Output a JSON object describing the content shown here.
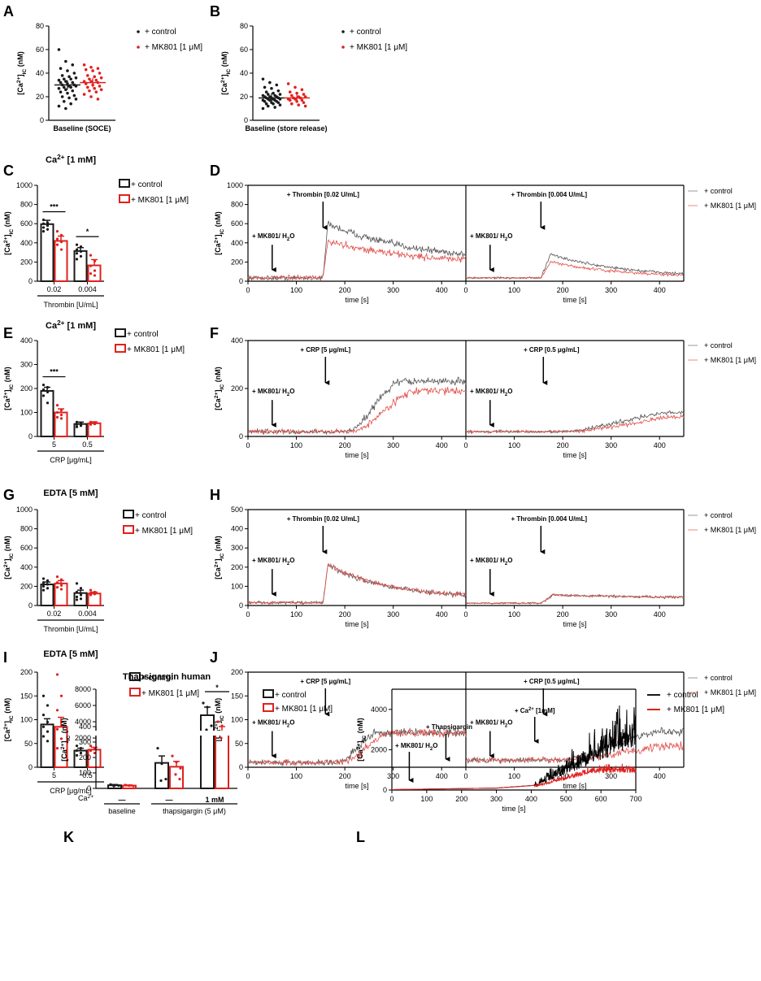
{
  "colors": {
    "control": "#1a1a1a",
    "mk801": "#e0211e",
    "trace_control": "#555555",
    "trace_mk801": "#e0504a"
  },
  "legend": {
    "control": "+ control",
    "mk801": "+ MK801 [1 μM]"
  },
  "ca_ic_label": "[Ca²⁺]IC (nM)",
  "chart_data": [
    {
      "panel": "A",
      "type": "scatter",
      "ylabel": "[Ca²⁺]IC (nM)",
      "ylim": [
        0,
        80
      ],
      "yticks": [
        0,
        20,
        40,
        60,
        80
      ],
      "xlabel": "Baseline (SOCE)",
      "series": [
        {
          "name": "+ control",
          "mean": 30,
          "values": [
            60,
            50,
            47,
            44,
            42,
            40,
            38,
            37,
            36,
            35,
            35,
            34,
            33,
            32,
            32,
            31,
            30,
            30,
            29,
            29,
            28,
            28,
            27,
            26,
            25,
            24,
            23,
            21,
            20,
            19,
            18,
            16,
            14,
            12,
            10
          ]
        },
        {
          "name": "+ MK801 [1 μM]",
          "mean": 32,
          "values": [
            47,
            45,
            44,
            43,
            42,
            40,
            38,
            37,
            36,
            35,
            34,
            33,
            33,
            32,
            31,
            30,
            29,
            28,
            27,
            26,
            25,
            24,
            22,
            20,
            18
          ]
        }
      ]
    },
    {
      "panel": "B",
      "type": "scatter",
      "ylabel": "[Ca²⁺]IC (nM)",
      "ylim": [
        0,
        80
      ],
      "yticks": [
        0,
        20,
        40,
        60,
        80
      ],
      "xlabel": "Baseline (store release)",
      "series": [
        {
          "name": "+ control",
          "mean": 19,
          "values": [
            35,
            32,
            30,
            28,
            27,
            25,
            24,
            23,
            22,
            22,
            21,
            21,
            20,
            20,
            20,
            19,
            19,
            19,
            18,
            18,
            18,
            17,
            17,
            17,
            16,
            16,
            15,
            15,
            14,
            14,
            13,
            12,
            11,
            10
          ]
        },
        {
          "name": "+ MK801 [1 μM]",
          "mean": 19,
          "values": [
            31,
            28,
            26,
            24,
            23,
            22,
            21,
            20,
            20,
            19,
            19,
            18,
            18,
            17,
            17,
            16,
            15,
            14,
            13,
            12
          ]
        }
      ]
    },
    {
      "panel": "C",
      "type": "bar",
      "title": "Ca²⁺ [1 mM]",
      "ylabel": "[Ca²⁺]IC (nM)",
      "ylim": [
        0,
        1000
      ],
      "yticks": [
        0,
        200,
        400,
        600,
        800,
        1000
      ],
      "xlabel": "Thrombin [U/mL]",
      "categories": [
        "0.02",
        "0.004"
      ],
      "series": [
        {
          "name": "+ control",
          "values": [
            595,
            315
          ],
          "sem": [
            40,
            35
          ],
          "points": [
            [
              640,
              610,
              600,
              580,
              560,
              540,
              520
            ],
            [
              380,
              360,
              330,
              310,
              290,
              260,
              230
            ]
          ]
        },
        {
          "name": "+ MK801 [1 μM]",
          "values": [
            420,
            165
          ],
          "sem": [
            50,
            60
          ],
          "points": [
            [
              520,
              480,
              440,
              410,
              380,
              330
            ],
            [
              270,
              210,
              160,
              110,
              80,
              60
            ]
          ]
        }
      ],
      "significance": [
        "***",
        "*"
      ]
    },
    {
      "panel": "D",
      "type": "line",
      "ylabel": "[Ca²⁺]IC (nM)",
      "xlabel": "time [s]",
      "ylim": [
        0,
        1000
      ],
      "yticks": [
        0,
        200,
        400,
        600,
        800,
        1000
      ],
      "xlim": [
        0,
        450
      ],
      "xticks": [
        0,
        100,
        200,
        300,
        400
      ],
      "subpanels": [
        {
          "stimulus": "+ Thrombin [0.02 U/mL]",
          "stimulus_time": 155,
          "treatment": "+ MK801/ H₂O",
          "treatment_time": 50,
          "base": 35,
          "control_peak": 600,
          "mk801_peak": 420,
          "control_end": 200,
          "mk801_end": 170,
          "noise": 25,
          "rise": 10,
          "decay": 180
        },
        {
          "stimulus": "+ Thrombin [0.004 U/mL]",
          "stimulus_time": 155,
          "treatment": "+ MK801/ H₂O",
          "treatment_time": 50,
          "base": 35,
          "control_peak": 280,
          "mk801_peak": 200,
          "control_end": 40,
          "mk801_end": 35,
          "noise": 10,
          "rise": 20,
          "decay": 150
        }
      ],
      "legend": [
        "+ control",
        "+ MK801 [1 μM]"
      ]
    },
    {
      "panel": "E",
      "type": "bar",
      "title": "Ca²⁺ [1 mM]",
      "ylabel": "[Ca²⁺]IC (nM)",
      "ylim": [
        0,
        400
      ],
      "yticks": [
        0,
        100,
        200,
        300,
        400
      ],
      "xlabel": "CRP [μg/mL]",
      "categories": [
        "5",
        "0.5"
      ],
      "series": [
        {
          "name": "+ control",
          "values": [
            190,
            52
          ],
          "sem": [
            15,
            8
          ],
          "points": [
            [
              215,
              205,
              195,
              185,
              170,
              140
            ],
            [
              60,
              55,
              50,
              45,
              40
            ]
          ]
        },
        {
          "name": "+ MK801 [1 μM]",
          "values": [
            100,
            55
          ],
          "sem": [
            15,
            6
          ],
          "points": [
            [
              130,
              110,
              100,
              90,
              80,
              75
            ],
            [
              60,
              58,
              55,
              52,
              50
            ]
          ]
        }
      ],
      "significance": [
        "***"
      ]
    },
    {
      "panel": "F",
      "type": "line",
      "ylabel": "[Ca²⁺]IC (nM)",
      "xlabel": "time [s]",
      "ylim": [
        0,
        400
      ],
      "yticks": [
        0,
        200,
        400
      ],
      "xlim": [
        0,
        450
      ],
      "xticks": [
        0,
        100,
        200,
        300,
        400
      ],
      "subpanels": [
        {
          "stimulus": "+ CRP [5 μg/mL]",
          "stimulus_time": 160,
          "treatment": "+ MK801/ H₂O",
          "treatment_time": 50,
          "base": 20,
          "control_plateau": 230,
          "mk801_plateau": 190,
          "noise": 10,
          "ramp_start": 200,
          "ramp_end": 320
        },
        {
          "stimulus": "+ CRP [0.5 μg/mL]",
          "stimulus_time": 160,
          "treatment": "+ MK801/ H₂O",
          "treatment_time": 50,
          "base": 20,
          "control_plateau": 100,
          "mk801_plateau": 85,
          "noise": 6,
          "ramp_start": 190,
          "ramp_end": 440
        }
      ],
      "legend": [
        "+ control",
        "+ MK801 [1 μM]"
      ]
    },
    {
      "panel": "G",
      "type": "bar",
      "title": "EDTA [5 mM]",
      "ylabel": "[Ca²⁺]IC (nM)",
      "ylim": [
        0,
        1000
      ],
      "yticks": [
        0,
        200,
        400,
        600,
        800,
        1000
      ],
      "xlabel": "Thrombin [U/mL]",
      "categories": [
        "0.02",
        "0.004"
      ],
      "series": [
        {
          "name": "+ control",
          "values": [
            220,
            130
          ],
          "sem": [
            25,
            30
          ],
          "points": [
            [
              280,
              260,
              240,
              220,
              200,
              180,
              160
            ],
            [
              230,
              180,
              140,
              110,
              90,
              70,
              60
            ]
          ]
        },
        {
          "name": "+ MK801 [1 μM]",
          "values": [
            230,
            125
          ],
          "sem": [
            30,
            15
          ],
          "points": [
            [
              300,
              270,
              240,
              210,
              190,
              170
            ],
            [
              160,
              140,
              130,
              120,
              110
            ]
          ]
        }
      ]
    },
    {
      "panel": "H",
      "type": "line",
      "ylabel": "[Ca²⁺]IC (nM)",
      "xlabel": "time [s]",
      "ylim": [
        0,
        500
      ],
      "yticks": [
        0,
        100,
        200,
        300,
        400,
        500
      ],
      "xlim": [
        0,
        450
      ],
      "xticks": [
        0,
        100,
        200,
        300,
        400
      ],
      "subpanels": [
        {
          "stimulus": "+ Thrombin [0.02 U/mL]",
          "stimulus_time": 155,
          "treatment": "+ MK801/ H₂O",
          "treatment_time": 50,
          "base": 15,
          "control_peak": 210,
          "mk801_peak": 215,
          "control_end": 40,
          "mk801_end": 40,
          "noise": 8,
          "rise": 10,
          "decay": 120
        },
        {
          "stimulus": "+ Thrombin [0.004 U/mL]",
          "stimulus_time": 155,
          "treatment": "+ MK801/ H₂O",
          "treatment_time": 50,
          "base": 12,
          "control_peak": 55,
          "mk801_peak": 55,
          "control_end": 35,
          "mk801_end": 35,
          "noise": 4,
          "rise": 25,
          "decay": 300
        }
      ],
      "legend": [
        "+ control",
        "+ MK801 [1 μM]"
      ]
    },
    {
      "panel": "I",
      "type": "bar",
      "title": "EDTA [5 mM]",
      "ylabel": "[Ca²⁺]IC (nM)",
      "ylim": [
        0,
        200
      ],
      "yticks": [
        0,
        50,
        100,
        150,
        200
      ],
      "xlabel": "CRP [μg/mL]",
      "categories": [
        "5",
        "0.5"
      ],
      "series": [
        {
          "name": "+ control",
          "values": [
            90,
            35
          ],
          "sem": [
            12,
            5
          ],
          "points": [
            [
              150,
              130,
              110,
              95,
              85,
              75,
              65,
              55
            ],
            [
              45,
              40,
              35,
              30,
              25
            ]
          ]
        },
        {
          "name": "+ MK801 [1 μM]",
          "values": [
            85,
            37
          ],
          "sem": [
            20,
            5
          ],
          "points": [
            [
              195,
              150,
              120,
              95,
              80,
              60,
              40
            ],
            [
              45,
              40,
              35,
              30
            ]
          ]
        }
      ]
    },
    {
      "panel": "J",
      "type": "line",
      "ylabel": "[Ca²⁺]IC (nM)",
      "xlabel": "time [s]",
      "ylim": [
        0,
        200
      ],
      "yticks": [
        0,
        50,
        100,
        150,
        200
      ],
      "xlim": [
        0,
        450
      ],
      "xticks": [
        0,
        100,
        200,
        300,
        400
      ],
      "subpanels": [
        {
          "stimulus": "+ CRP [5 μg/mL]",
          "stimulus_time": 160,
          "treatment": "+ MK801/ H₂O",
          "treatment_time": 50,
          "base": 10,
          "control_plateau": 72,
          "mk801_plateau": 72,
          "noise": 6,
          "ramp_start": 180,
          "ramp_end": 270
        },
        {
          "stimulus": "+ CRP [0.5 μg/mL]",
          "stimulus_time": 160,
          "treatment": "+ MK801/ H₂O",
          "treatment_time": 50,
          "base": 15,
          "control_plateau": 75,
          "mk801_plateau": 45,
          "noise": 6,
          "ramp_start": 180,
          "ramp_end": 420
        }
      ],
      "legend": [
        "+ control",
        "+ MK801 [1 μM]"
      ]
    },
    {
      "panel": "K",
      "type": "bar",
      "title": "Thapsigargin human",
      "ylabel": "[Ca²⁺]IC (nM)",
      "yticks_upper": [
        2000,
        4000,
        6000,
        8000
      ],
      "yticks_lower": [
        0,
        100,
        200,
        300,
        400
      ],
      "ybreak": [
        400,
        1000
      ],
      "categories": [
        "baseline",
        "thapsigargin — ",
        "thapsigargin 1 mM"
      ],
      "ca_row_label": "Ca²⁺",
      "ca_values": [
        "—",
        "—",
        "1 mM"
      ],
      "group_labels": [
        "baseline",
        "thapsigargin (5 μM)"
      ],
      "series": [
        {
          "name": "+ control",
          "values": [
            20,
            165,
            4800
          ],
          "sem": [
            5,
            45,
            1000
          ],
          "points": [
            [
              25,
              20,
              18,
              15
            ],
            [
              260,
              160,
              60,
              50
            ],
            [
              6300,
              5800,
              3500,
              3000
            ]
          ]
        },
        {
          "name": "+ MK801 [1 μM]",
          "values": [
            18,
            140,
            2800
          ],
          "sem": [
            4,
            35,
            600
          ],
          "points": [
            [
              22,
              18,
              15
            ],
            [
              210,
              170,
              130,
              90,
              60
            ],
            [
              4000,
              3500,
              2700,
              2000
            ]
          ]
        }
      ],
      "significance": [
        "*"
      ]
    },
    {
      "panel": "L",
      "type": "line",
      "ylabel": "[Ca²⁺]IC (nM)",
      "xlabel": "time [s]",
      "ylim": [
        0,
        5000
      ],
      "yticks": [
        0,
        2000,
        4000
      ],
      "xlim": [
        0,
        700
      ],
      "xticks": [
        0,
        100,
        200,
        300,
        400,
        500,
        600,
        700
      ],
      "annotations": [
        {
          "text": "+ MK801/ H₂O",
          "time": 50
        },
        {
          "text": "+ Thapsigargin",
          "time": 155
        },
        {
          "text": "+ Ca²⁺ [1mM]",
          "time": 410
        }
      ],
      "legend": [
        "+ control",
        "+ MK801 [1 μM]"
      ]
    }
  ]
}
